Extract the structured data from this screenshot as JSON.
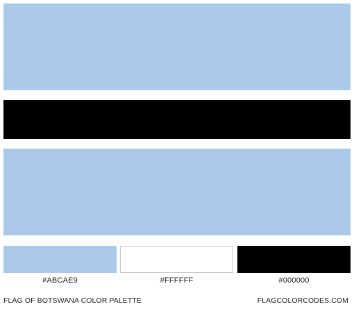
{
  "flag": {
    "bands": [
      {
        "color": "#ABCAE9"
      },
      {
        "color": "#FFFFFF"
      },
      {
        "color": "#000000"
      },
      {
        "color": "#FFFFFF"
      },
      {
        "color": "#ABCAE9"
      }
    ]
  },
  "palette": [
    {
      "hex": "#ABCAE9",
      "color": "#ABCAE9"
    },
    {
      "hex": "#FFFFFF",
      "color": "#FFFFFF"
    },
    {
      "hex": "#000000",
      "color": "#000000"
    }
  ],
  "footer": {
    "title": "FLAG OF BOTSWANA COLOR PALETTE",
    "site": "FLAGCOLORCODES.COM"
  }
}
